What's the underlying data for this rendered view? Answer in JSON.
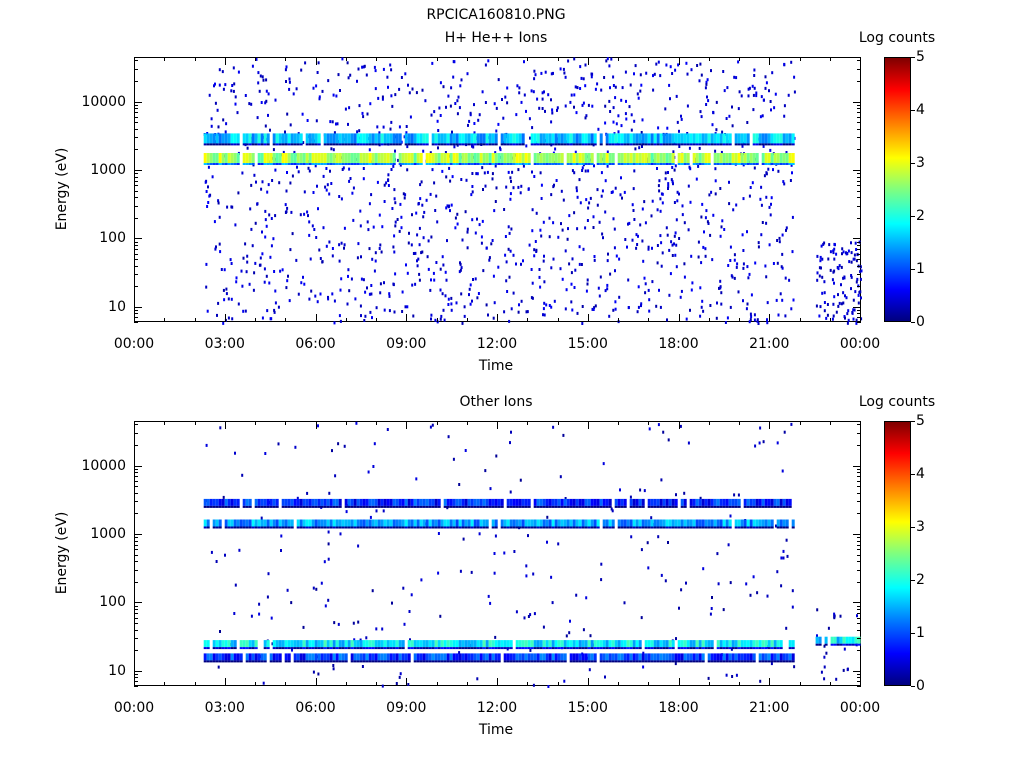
{
  "page_title": "RPCICA160810.PNG",
  "chart_data": [
    {
      "type": "heatmap",
      "title": "H+ He++ Ions",
      "xlabel": "Time",
      "ylabel": "Energy (eV)",
      "x_ticks": [
        "00:00",
        "03:00",
        "06:00",
        "09:00",
        "12:00",
        "15:00",
        "18:00",
        "21:00",
        "00:00"
      ],
      "y_ticks": [
        "10",
        "100",
        "1000",
        "10000"
      ],
      "y_scale": "log",
      "ylim": [
        6,
        45000
      ],
      "xlim_hours": [
        0,
        24
      ],
      "colorbar_label": "Log counts",
      "colorbar_ticks": [
        "0",
        "1",
        "2",
        "3",
        "4",
        "5"
      ],
      "colorbar_range": [
        0,
        5
      ],
      "data_coverage_hours": [
        [
          2.3,
          21.8
        ],
        [
          22.5,
          24.0
        ]
      ],
      "bands": [
        {
          "energy_eV": 1500,
          "start_hour": 2.3,
          "end_hour": 21.8,
          "log_counts": 2.7
        },
        {
          "energy_eV": 2900,
          "start_hour": 2.3,
          "end_hour": 21.8,
          "log_counts": 1.6
        }
      ],
      "background_log_counts": 0.2
    },
    {
      "type": "heatmap",
      "title": "Other Ions",
      "xlabel": "Time",
      "ylabel": "Energy (eV)",
      "x_ticks": [
        "00:00",
        "03:00",
        "06:00",
        "09:00",
        "12:00",
        "15:00",
        "18:00",
        "21:00",
        "00:00"
      ],
      "y_ticks": [
        "10",
        "100",
        "1000",
        "10000"
      ],
      "y_scale": "log",
      "ylim": [
        6,
        45000
      ],
      "xlim_hours": [
        0,
        24
      ],
      "colorbar_label": "Log counts",
      "colorbar_ticks": [
        "0",
        "1",
        "2",
        "3",
        "4",
        "5"
      ],
      "colorbar_range": [
        0,
        5
      ],
      "data_coverage_hours": [
        [
          2.3,
          21.8
        ],
        [
          22.5,
          24.0
        ]
      ],
      "bands": [
        {
          "energy_eV": 1450,
          "start_hour": 2.3,
          "end_hour": 21.8,
          "log_counts": 1.4
        },
        {
          "energy_eV": 2900,
          "start_hour": 2.3,
          "end_hour": 21.8,
          "log_counts": 0.8
        },
        {
          "energy_eV": 25,
          "start_hour": 2.3,
          "end_hour": 21.8,
          "log_counts": 1.8
        },
        {
          "energy_eV": 16,
          "start_hour": 2.3,
          "end_hour": 21.8,
          "log_counts": 0.9
        },
        {
          "energy_eV": 28,
          "start_hour": 22.5,
          "end_hour": 24.0,
          "log_counts": 1.8
        }
      ],
      "background_log_counts": 0.1
    }
  ]
}
